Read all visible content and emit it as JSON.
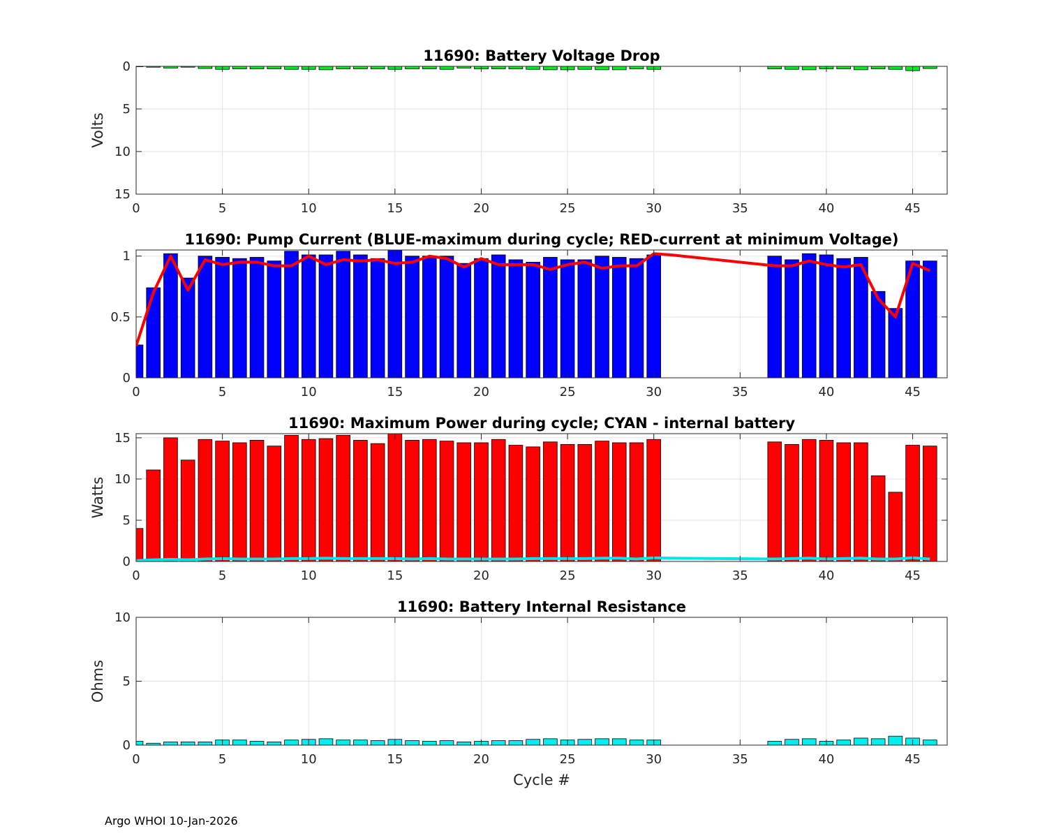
{
  "footer": "Argo WHOI 10-Jan-2026",
  "chart_data": [
    {
      "type": "bar",
      "title": "11690: Battery Voltage Drop",
      "ylabel": "Volts",
      "xlabel": "",
      "xlim": [
        0,
        47
      ],
      "ylim": [
        0,
        15
      ],
      "y_reversed": true,
      "xticks": [
        0,
        5,
        10,
        15,
        20,
        25,
        30,
        35,
        40,
        45
      ],
      "yticks": [
        0,
        5,
        10,
        15
      ],
      "grid": true,
      "bar_color": "#00ee22",
      "x": [
        0,
        1,
        2,
        3,
        4,
        5,
        6,
        7,
        8,
        9,
        10,
        11,
        12,
        13,
        14,
        15,
        16,
        17,
        18,
        19,
        20,
        21,
        22,
        23,
        24,
        25,
        26,
        27,
        28,
        29,
        30,
        37,
        38,
        39,
        40,
        41,
        42,
        43,
        44,
        45,
        46
      ],
      "values": [
        0.05,
        0.1,
        0.2,
        0.1,
        0.25,
        0.35,
        0.3,
        0.3,
        0.3,
        0.35,
        0.35,
        0.4,
        0.3,
        0.3,
        0.3,
        0.35,
        0.3,
        0.3,
        0.35,
        0.2,
        0.3,
        0.3,
        0.3,
        0.35,
        0.4,
        0.4,
        0.35,
        0.4,
        0.4,
        0.3,
        0.35,
        0.3,
        0.35,
        0.4,
        0.3,
        0.3,
        0.4,
        0.3,
        0.35,
        0.5,
        0.25
      ]
    },
    {
      "type": "bar+line",
      "title": "11690: Pump Current (BLUE-maximum during cycle; RED-current at minimum Voltage)",
      "ylabel": "",
      "xlabel": "",
      "xlim": [
        0,
        47
      ],
      "ylim": [
        0,
        1.05
      ],
      "xticks": [
        0,
        5,
        10,
        15,
        20,
        25,
        30,
        35,
        40,
        45
      ],
      "yticks": [
        0,
        0.5,
        1
      ],
      "grid": true,
      "series": [
        {
          "name": "maximum during cycle",
          "kind": "bar",
          "color": "#0000ff",
          "x": [
            0,
            1,
            2,
            3,
            4,
            5,
            6,
            7,
            8,
            9,
            10,
            11,
            12,
            13,
            14,
            15,
            16,
            17,
            18,
            19,
            20,
            21,
            22,
            23,
            24,
            25,
            26,
            27,
            28,
            29,
            30,
            37,
            38,
            39,
            40,
            41,
            42,
            43,
            44,
            45,
            46
          ],
          "values": [
            0.27,
            0.74,
            1.02,
            0.82,
            1.0,
            0.99,
            0.98,
            0.99,
            0.96,
            1.04,
            1.01,
            1.01,
            1.04,
            1.01,
            0.98,
            1.05,
            1.0,
            1.0,
            1.0,
            0.94,
            0.98,
            1.01,
            0.97,
            0.95,
            0.99,
            0.97,
            0.97,
            1.0,
            0.99,
            0.98,
            1.01,
            1.0,
            0.97,
            1.02,
            1.01,
            0.98,
            0.99,
            0.71,
            0.57,
            0.96,
            0.96
          ]
        },
        {
          "name": "current at minimum Voltage",
          "kind": "line",
          "color": "#ff0000",
          "x": [
            0,
            1,
            2,
            3,
            4,
            5,
            6,
            7,
            8,
            9,
            10,
            11,
            12,
            13,
            14,
            15,
            16,
            17,
            18,
            19,
            20,
            21,
            22,
            23,
            24,
            25,
            26,
            27,
            28,
            29,
            30,
            31,
            37,
            38,
            39,
            40,
            41,
            42,
            43,
            44,
            45,
            46
          ],
          "values": [
            0.26,
            0.7,
            1.0,
            0.72,
            0.97,
            0.93,
            0.95,
            0.95,
            0.92,
            0.92,
            1.0,
            0.93,
            0.97,
            0.96,
            0.97,
            0.94,
            0.95,
            1.0,
            0.98,
            0.91,
            0.98,
            0.93,
            0.93,
            0.93,
            0.89,
            0.93,
            0.95,
            0.9,
            0.92,
            0.92,
            1.02,
            1.01,
            0.92,
            0.92,
            0.96,
            0.93,
            0.91,
            0.93,
            0.65,
            0.5,
            0.94,
            0.88
          ]
        }
      ]
    },
    {
      "type": "bar+line",
      "title": "11690: Maximum Power during cycle; CYAN - internal battery",
      "ylabel": "Watts",
      "xlabel": "",
      "xlim": [
        0,
        47
      ],
      "ylim": [
        0,
        15.5
      ],
      "xticks": [
        0,
        5,
        10,
        15,
        20,
        25,
        30,
        35,
        40,
        45
      ],
      "yticks": [
        0,
        5,
        10,
        15
      ],
      "grid": true,
      "series": [
        {
          "name": "Maximum Power during cycle",
          "kind": "bar",
          "color": "#ff0000",
          "x": [
            0,
            1,
            2,
            3,
            4,
            5,
            6,
            7,
            8,
            9,
            10,
            11,
            12,
            13,
            14,
            15,
            16,
            17,
            18,
            19,
            20,
            21,
            22,
            23,
            24,
            25,
            26,
            27,
            28,
            29,
            30,
            37,
            38,
            39,
            40,
            41,
            42,
            43,
            44,
            45,
            46
          ],
          "values": [
            4.0,
            11.1,
            15.0,
            12.3,
            14.8,
            14.6,
            14.4,
            14.7,
            14.0,
            15.3,
            14.8,
            14.9,
            15.3,
            14.7,
            14.3,
            15.5,
            14.7,
            14.8,
            14.6,
            14.4,
            14.4,
            14.8,
            14.1,
            13.9,
            14.5,
            14.2,
            14.2,
            14.6,
            14.4,
            14.4,
            14.8,
            14.5,
            14.2,
            14.8,
            14.7,
            14.4,
            14.4,
            10.4,
            8.4,
            14.1,
            14.0
          ]
        },
        {
          "name": "internal battery",
          "kind": "line",
          "color": "#00e5ee",
          "x": [
            0,
            1,
            2,
            3,
            4,
            5,
            6,
            7,
            8,
            9,
            10,
            11,
            12,
            13,
            14,
            15,
            16,
            17,
            18,
            19,
            20,
            21,
            22,
            23,
            24,
            25,
            26,
            27,
            28,
            29,
            30,
            31,
            37,
            38,
            39,
            40,
            41,
            42,
            43,
            44,
            45,
            46
          ],
          "values": [
            0.1,
            0.2,
            0.25,
            0.2,
            0.3,
            0.35,
            0.3,
            0.3,
            0.3,
            0.35,
            0.35,
            0.4,
            0.35,
            0.35,
            0.35,
            0.35,
            0.3,
            0.35,
            0.3,
            0.3,
            0.3,
            0.3,
            0.3,
            0.35,
            0.35,
            0.35,
            0.35,
            0.4,
            0.4,
            0.3,
            0.45,
            0.4,
            0.3,
            0.35,
            0.4,
            0.3,
            0.35,
            0.4,
            0.3,
            0.3,
            0.45,
            0.3
          ]
        }
      ]
    },
    {
      "type": "bar",
      "title": "11690: Battery Internal Resistance",
      "ylabel": "Ohms",
      "xlabel": "Cycle #",
      "xlim": [
        0,
        47
      ],
      "ylim": [
        0,
        10
      ],
      "xticks": [
        0,
        5,
        10,
        15,
        20,
        25,
        30,
        35,
        40,
        45
      ],
      "yticks": [
        0,
        5,
        10
      ],
      "grid": true,
      "bar_color": "#00eeee",
      "x": [
        0,
        1,
        2,
        3,
        4,
        5,
        6,
        7,
        8,
        9,
        10,
        11,
        12,
        13,
        14,
        15,
        16,
        17,
        18,
        19,
        20,
        21,
        22,
        23,
        24,
        25,
        26,
        27,
        28,
        29,
        30,
        37,
        38,
        39,
        40,
        41,
        42,
        43,
        44,
        45,
        46
      ],
      "values": [
        0.3,
        0.15,
        0.25,
        0.25,
        0.25,
        0.4,
        0.4,
        0.3,
        0.25,
        0.4,
        0.45,
        0.5,
        0.4,
        0.4,
        0.35,
        0.45,
        0.35,
        0.3,
        0.35,
        0.25,
        0.3,
        0.35,
        0.35,
        0.45,
        0.5,
        0.4,
        0.45,
        0.5,
        0.5,
        0.4,
        0.4,
        0.3,
        0.45,
        0.5,
        0.3,
        0.4,
        0.55,
        0.5,
        0.7,
        0.55,
        0.4
      ]
    }
  ]
}
